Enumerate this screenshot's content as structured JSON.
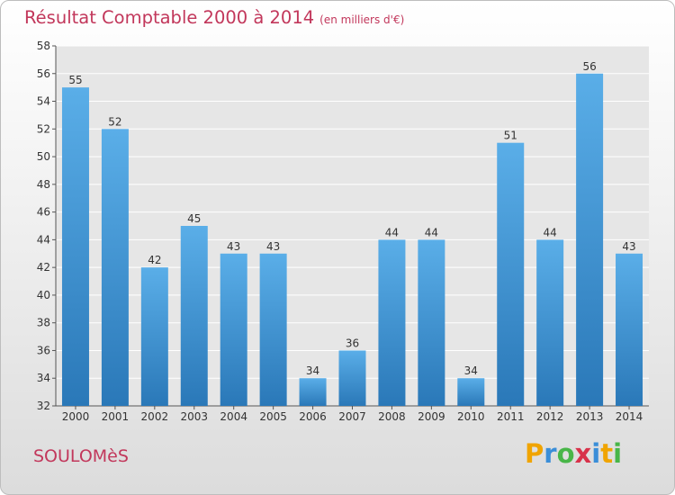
{
  "title": {
    "main": "Résultat Comptable 2000 à 2014",
    "unit": "(en milliers d'€)"
  },
  "town": "SOULOMèS",
  "logo": {
    "letters": [
      "P",
      "r",
      "o",
      "x",
      "i",
      "t",
      "i"
    ],
    "colors": [
      "#f0a400",
      "#3a8ed8",
      "#48b648",
      "#d8324a",
      "#3a8ed8",
      "#f0a400",
      "#48b648"
    ]
  },
  "chart_data": {
    "type": "bar",
    "categories": [
      "2000",
      "2001",
      "2002",
      "2003",
      "2004",
      "2005",
      "2006",
      "2007",
      "2008",
      "2009",
      "2010",
      "2011",
      "2012",
      "2013",
      "2014"
    ],
    "values": [
      55,
      52,
      42,
      45,
      43,
      43,
      34,
      36,
      44,
      44,
      34,
      51,
      44,
      56,
      43
    ],
    "ylim": [
      32,
      58
    ],
    "yticks": [
      32,
      34,
      36,
      38,
      40,
      42,
      44,
      46,
      48,
      50,
      52,
      54,
      56,
      58
    ],
    "grid": true,
    "bar_color_top": "#5aaee8",
    "bar_color_bottom": "#2a78b8",
    "data_labels": true
  }
}
